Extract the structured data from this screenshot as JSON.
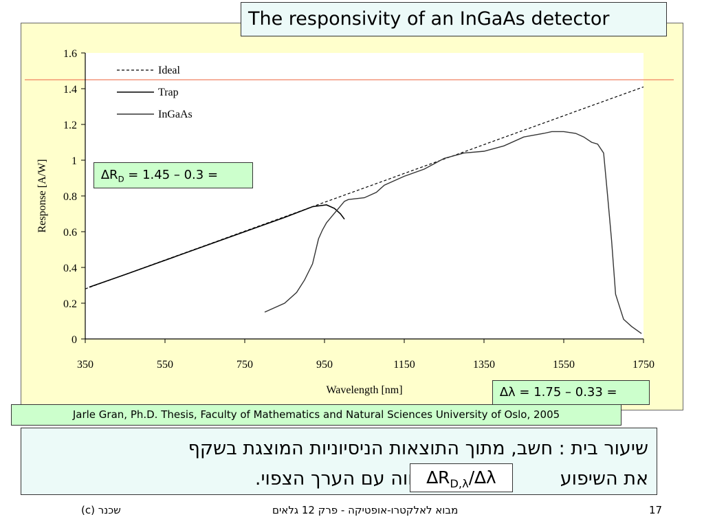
{
  "slide": {
    "title": "The responsivity of an InGaAs detector",
    "source": "Jarle Gran, Ph.D. Thesis, Faculty of Mathematics and Natural Sciences University of Oslo, 2005",
    "delta_r": {
      "symbol": "∆R",
      "subscript": "D",
      "expression": " = 1.45 – 0.3 ="
    },
    "delta_lambda": {
      "text": "∆λ = 1.75 – 0.33 ="
    },
    "homework": {
      "line1": "שיעור בית : חשב, מתוך התוצאות הניסיוניות המוצגת בשקף",
      "line2_start": "את השיפוע",
      "line2_end": "והשווה עם הערך הצפוי."
    },
    "formula": {
      "symbol": "∆R",
      "subscript": "D,λ",
      "suffix": "/∆λ"
    },
    "footer": {
      "left": "(c)   שכנר",
      "center": "מבוא לאלקטרו-אופטיקה - פרק  12 גלאים",
      "page": "17"
    },
    "colors": {
      "panel": "#ffffcc",
      "green_box": "#ccffcc",
      "title_box": "#ecfaf8",
      "ref_line": "#f08060"
    }
  },
  "chart_data": {
    "type": "line",
    "title": "",
    "xlabel": "Wavelength [nm]",
    "ylabel": "Response [A/W]",
    "xlim": [
      350,
      1750
    ],
    "ylim": [
      0,
      1.6
    ],
    "x_ticks": [
      350,
      550,
      750,
      950,
      1150,
      1350,
      1550,
      1750
    ],
    "y_ticks": [
      0,
      0.2,
      0.4,
      0.6,
      0.8,
      1,
      1.2,
      1.4,
      1.6
    ],
    "y_tick_labels": [
      "0",
      "0.2",
      "0.4",
      "0.6",
      "0.8",
      "1",
      "1.2",
      "1.4",
      "1.6"
    ],
    "legend_position": "top-left",
    "grid": false,
    "reference_line": {
      "y": 1.45,
      "color": "#f08060"
    },
    "series": [
      {
        "name": "Ideal",
        "style": "dashed",
        "x": [
          350,
          1750
        ],
        "y": [
          0.28,
          1.41
        ]
      },
      {
        "name": "Trap",
        "style": "solid",
        "x": [
          360,
          450,
          550,
          650,
          750,
          850,
          920,
          955,
          975,
          990,
          1000
        ],
        "y": [
          0.29,
          0.36,
          0.44,
          0.52,
          0.6,
          0.68,
          0.74,
          0.75,
          0.73,
          0.7,
          0.67
        ]
      },
      {
        "name": "InGaAs",
        "style": "solid",
        "x": [
          800,
          850,
          880,
          900,
          920,
          935,
          945,
          955,
          970,
          985,
          1000,
          1010,
          1050,
          1080,
          1100,
          1150,
          1200,
          1250,
          1300,
          1350,
          1400,
          1450,
          1500,
          1520,
          1550,
          1580,
          1600,
          1620,
          1635,
          1650,
          1660,
          1670,
          1680,
          1690,
          1700,
          1720,
          1745
        ],
        "y": [
          0.15,
          0.2,
          0.26,
          0.33,
          0.42,
          0.56,
          0.61,
          0.65,
          0.69,
          0.73,
          0.77,
          0.78,
          0.79,
          0.82,
          0.86,
          0.91,
          0.95,
          1.01,
          1.04,
          1.05,
          1.08,
          1.13,
          1.15,
          1.16,
          1.16,
          1.15,
          1.13,
          1.1,
          1.09,
          1.04,
          0.8,
          0.55,
          0.25,
          0.18,
          0.11,
          0.07,
          0.03
        ]
      }
    ]
  }
}
